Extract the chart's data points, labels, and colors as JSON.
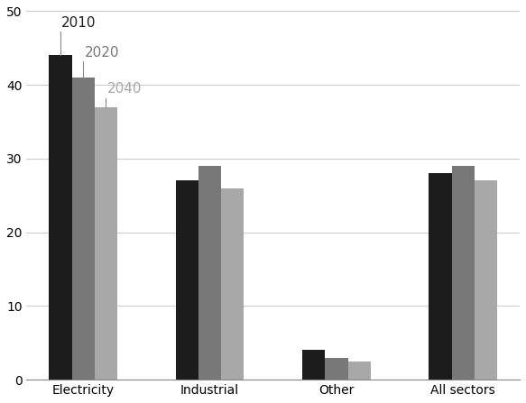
{
  "categories": [
    "Electricity",
    "Industrial",
    "Other",
    "All sectors"
  ],
  "series": [
    {
      "label": "2010",
      "color": "#1c1c1c",
      "values": [
        44,
        27,
        4,
        28
      ]
    },
    {
      "label": "2020",
      "color": "#787878",
      "values": [
        41,
        29,
        3,
        29
      ]
    },
    {
      "label": "2040",
      "color": "#a8a8a8",
      "values": [
        37,
        26,
        2.5,
        27
      ]
    }
  ],
  "ylim": [
    0,
    50
  ],
  "yticks": [
    0,
    10,
    20,
    30,
    40,
    50
  ],
  "background_color": "#ffffff",
  "bar_width": 0.18,
  "label_offsets": [
    3.5,
    2.5,
    1.5
  ],
  "label_fontsize": 11
}
